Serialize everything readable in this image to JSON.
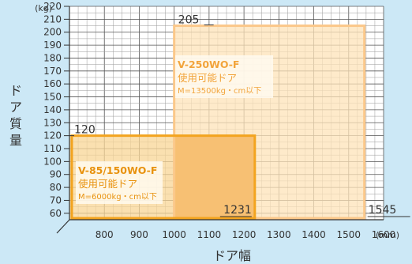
{
  "chart_data": {
    "type": "area",
    "title": "",
    "xlabel": "ドア幅",
    "ylabel": "ドア質量",
    "x_unit": "(mm)",
    "y_unit": "(kg)",
    "xlim": [
      700,
      1600
    ],
    "ylim": [
      55,
      220
    ],
    "x_ticks": [
      800,
      900,
      1000,
      1100,
      1200,
      1300,
      1400,
      1500,
      1600
    ],
    "y_ticks": [
      60,
      70,
      80,
      90,
      100,
      110,
      120,
      130,
      140,
      150,
      160,
      170,
      180,
      190,
      200,
      210,
      220
    ],
    "grid": true,
    "regions": [
      {
        "name": "V-250WO-F",
        "subtitle": "使用可能ドア",
        "condition": "M=13500kg・cm以下",
        "x_min": 1000,
        "x_max": 1545,
        "y_min": 55,
        "y_max": 205,
        "x_max_label": "1545",
        "y_max_label": "205",
        "color": "#fbc88a",
        "fill": "#fde3b8",
        "text_color": "#f2a43b"
      },
      {
        "name": "V-85/150WO-F",
        "subtitle": "使用可能ドア",
        "condition": "M=6000kg・cm以下",
        "x_min": 700,
        "x_max": 1231,
        "y_min": 55,
        "y_max": 120,
        "x_max_label": "1231",
        "y_max_label": "120",
        "color": "#f3a41f",
        "fill": "#f8d595",
        "text_color": "#e8920e"
      }
    ],
    "overlap_fill": "#f7c073"
  }
}
